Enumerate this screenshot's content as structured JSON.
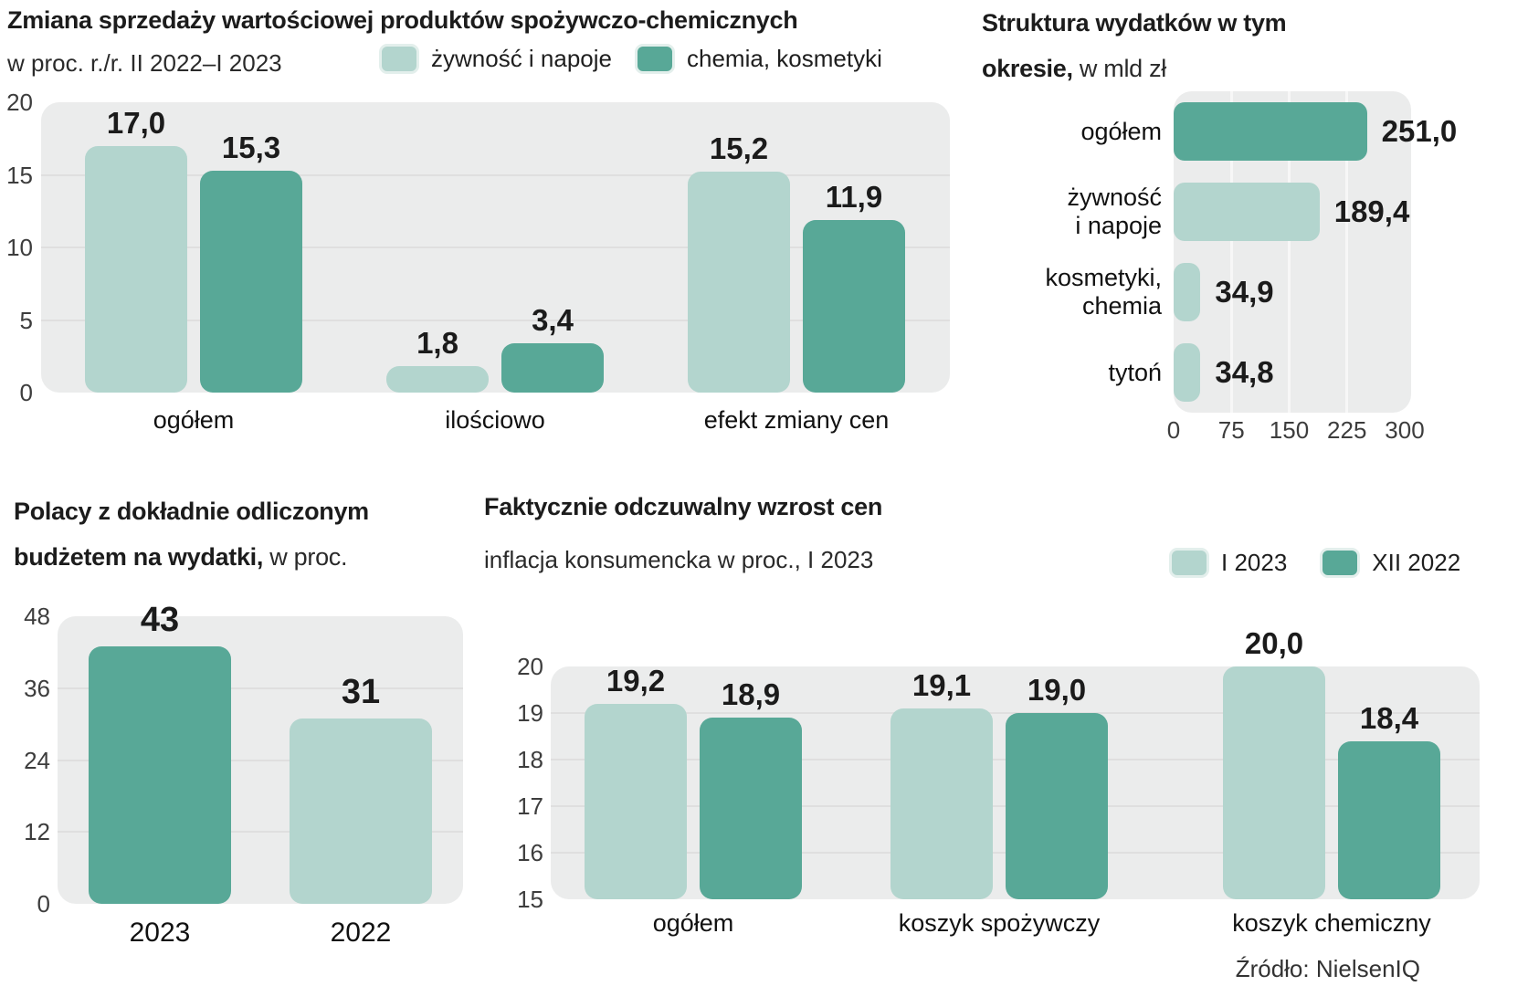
{
  "page": {
    "source": "Źródło: NielsenIQ",
    "colors": {
      "light": "#b3d5ce",
      "dark": "#58a897",
      "plot_bg": "#ebecec",
      "grid": "#dfdfdf",
      "grid_vertical": "#f7f7f7",
      "value_text": "#1b1b1b",
      "tick_text": "#3d3d3d",
      "category_text": "#111111"
    }
  },
  "chart_data": [
    {
      "id": "sales-change",
      "type": "bar",
      "title": "Zmiana sprzedaży wartościowej produktów spożywczo-chemicznych",
      "subtitle": "w proc. r./r. II 2022–I 2023",
      "legend": [
        {
          "label": "żywność i napoje",
          "color_key": "light"
        },
        {
          "label": "chemia, kosmetyki",
          "color_key": "dark"
        }
      ],
      "categories": [
        "ogółem",
        "ilościowo",
        "efekt zmiany cen"
      ],
      "series": [
        {
          "name": "żywność i napoje",
          "color_key": "light",
          "values": [
            17.0,
            1.8,
            15.2
          ],
          "value_labels": [
            "17,0",
            "1,8",
            "15,2"
          ]
        },
        {
          "name": "chemia, kosmetyki",
          "color_key": "dark",
          "values": [
            15.3,
            3.4,
            11.9
          ],
          "value_labels": [
            "15,3",
            "3,4",
            "11,9"
          ]
        }
      ],
      "ylim": [
        0,
        20
      ],
      "yticks": [
        20,
        15,
        10,
        5,
        0
      ],
      "grid": true,
      "legend_position": "top"
    },
    {
      "id": "spending-structure",
      "type": "bar-horizontal",
      "title_line1": "Struktura wydatków w tym",
      "title_line2_bold": "okresie,",
      "title_line2_normal": "w mld zł",
      "categories": [
        [
          "ogółem"
        ],
        [
          "żywność",
          "i napoje"
        ],
        [
          "kosmetyki,",
          "chemia"
        ],
        [
          "tytoń"
        ]
      ],
      "values": [
        251.0,
        189.4,
        34.9,
        34.8
      ],
      "value_labels": [
        "251,0",
        "189,4",
        "34,9",
        "34,8"
      ],
      "bar_colors": [
        "dark",
        "light",
        "light",
        "light"
      ],
      "xlim": [
        0,
        300
      ],
      "xticks": [
        0,
        75,
        150,
        225,
        300
      ],
      "grid": true
    },
    {
      "id": "exact-budget",
      "type": "bar",
      "title_line1": "Polacy z dokładnie odliczonym",
      "title_line2_bold": "budżetem na wydatki,",
      "title_line2_normal": "w proc.",
      "categories": [
        "2023",
        "2022"
      ],
      "values": [
        43,
        31
      ],
      "value_labels": [
        "43",
        "31"
      ],
      "bar_colors": [
        "dark",
        "light"
      ],
      "ylim": [
        0,
        48
      ],
      "yticks": [
        48,
        36,
        24,
        12,
        0
      ],
      "grid": true
    },
    {
      "id": "perceived-inflation",
      "type": "bar",
      "title": "Faktycznie odczuwalny wzrost cen",
      "subtitle": "inflacja konsumencka w proc., I 2023",
      "legend": [
        {
          "label": "I 2023",
          "color_key": "light"
        },
        {
          "label": "XII 2022",
          "color_key": "dark"
        }
      ],
      "categories": [
        "ogółem",
        "koszyk spożywczy",
        "koszyk chemiczny"
      ],
      "series": [
        {
          "name": "I 2023",
          "color_key": "light",
          "values": [
            19.2,
            19.1,
            20.0
          ],
          "value_labels": [
            "19,2",
            "19,1",
            "20,0"
          ]
        },
        {
          "name": "XII 2022",
          "color_key": "dark",
          "values": [
            18.9,
            19.0,
            18.4
          ],
          "value_labels": [
            "18,9",
            "19,0",
            "18,4"
          ]
        }
      ],
      "ylim": [
        15,
        20
      ],
      "yticks": [
        20,
        19,
        18,
        17,
        16,
        15
      ],
      "grid": true,
      "legend_position": "right"
    }
  ]
}
